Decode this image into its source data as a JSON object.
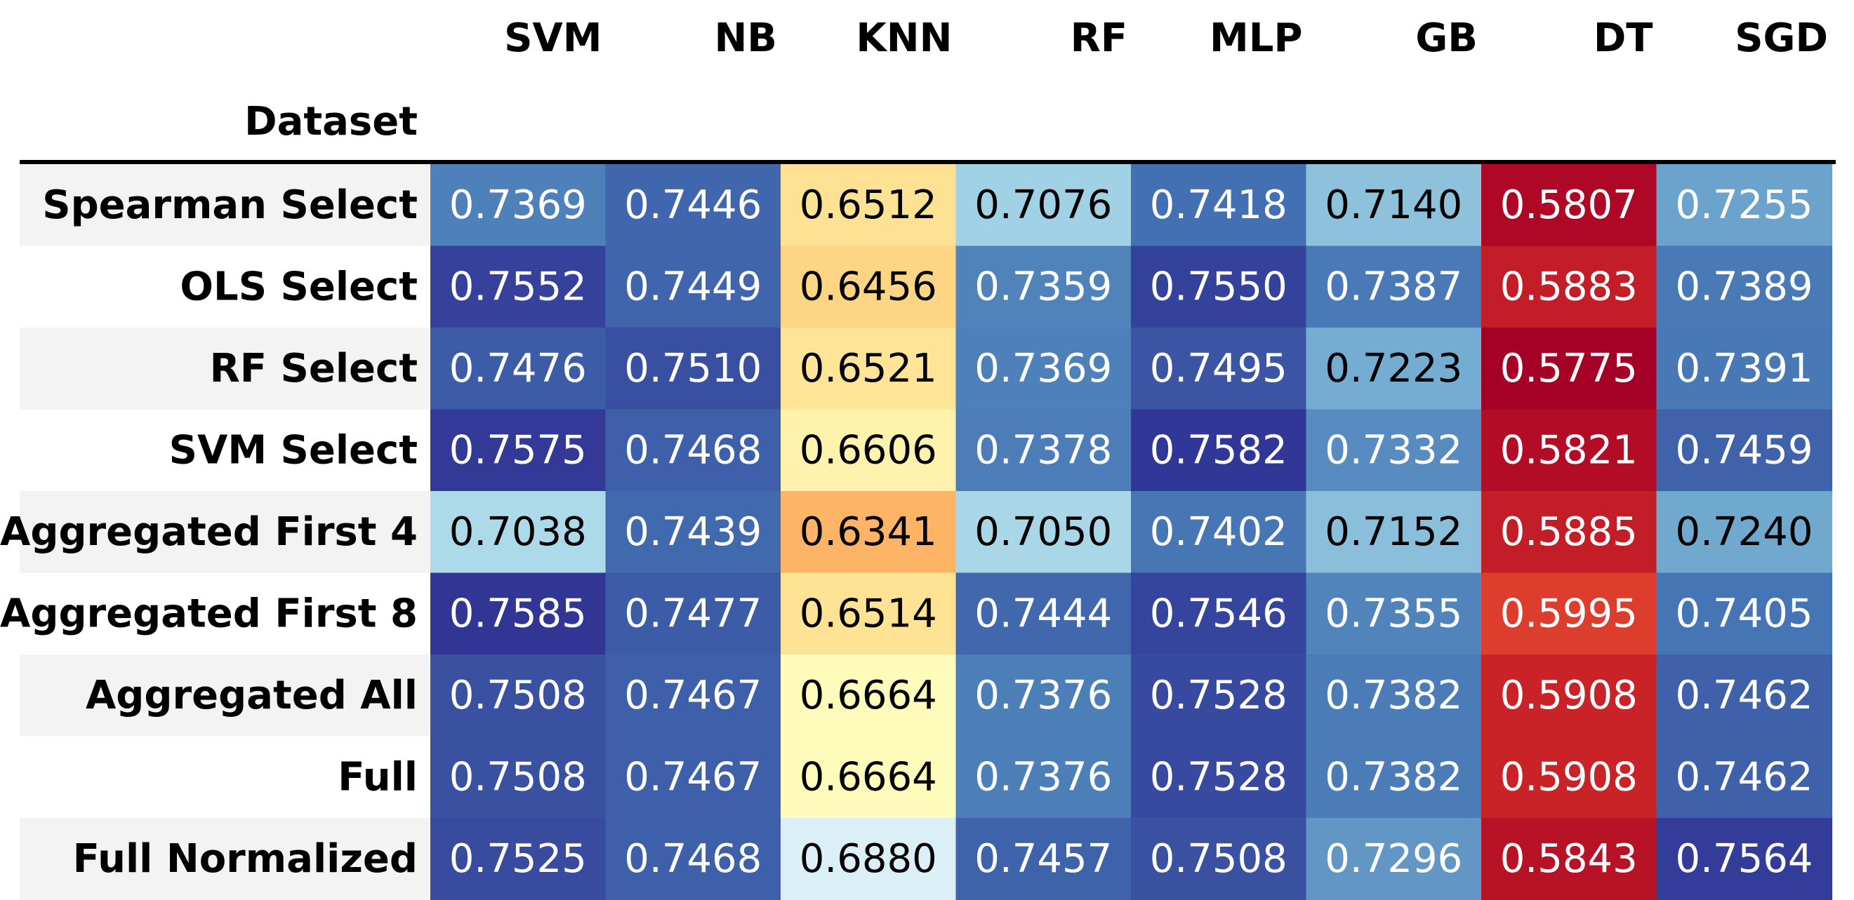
{
  "chart_data": {
    "type": "heatmap",
    "index_label": "Dataset",
    "columns": [
      "SVM",
      "NB",
      "KNN",
      "RF",
      "MLP",
      "GB",
      "DT",
      "SGD"
    ],
    "rows": [
      "Spearman Select",
      "OLS Select",
      "RF Select",
      "SVM Select",
      "Aggregated First 4",
      "Aggregated First 8",
      "Aggregated All",
      "Full",
      "Full Normalized"
    ],
    "values": [
      [
        0.7369,
        0.7446,
        0.6512,
        0.7076,
        0.7418,
        0.714,
        0.5807,
        0.7255
      ],
      [
        0.7552,
        0.7449,
        0.6456,
        0.7359,
        0.755,
        0.7387,
        0.5883,
        0.7389
      ],
      [
        0.7476,
        0.751,
        0.6521,
        0.7369,
        0.7495,
        0.7223,
        0.5775,
        0.7391
      ],
      [
        0.7575,
        0.7468,
        0.6606,
        0.7378,
        0.7582,
        0.7332,
        0.5821,
        0.7459
      ],
      [
        0.7038,
        0.7439,
        0.6341,
        0.705,
        0.7402,
        0.7152,
        0.5885,
        0.724
      ],
      [
        0.7585,
        0.7477,
        0.6514,
        0.7444,
        0.7546,
        0.7355,
        0.5995,
        0.7405
      ],
      [
        0.7508,
        0.7467,
        0.6664,
        0.7376,
        0.7528,
        0.7382,
        0.5908,
        0.7462
      ],
      [
        0.7508,
        0.7467,
        0.6664,
        0.7376,
        0.7528,
        0.7382,
        0.5908,
        0.7462
      ],
      [
        0.7525,
        0.7468,
        0.688,
        0.7457,
        0.7508,
        0.7296,
        0.5843,
        0.7564
      ]
    ],
    "display_values": [
      [
        "0.7369",
        "0.7446",
        "0.6512",
        "0.7076",
        "0.7418",
        "0.7140",
        "0.5807",
        "0.7255"
      ],
      [
        "0.7552",
        "0.7449",
        "0.6456",
        "0.7359",
        "0.7550",
        "0.7387",
        "0.5883",
        "0.7389"
      ],
      [
        "0.7476",
        "0.7510",
        "0.6521",
        "0.7369",
        "0.7495",
        "0.7223",
        "0.5775",
        "0.7391"
      ],
      [
        "0.7575",
        "0.7468",
        "0.6606",
        "0.7378",
        "0.7582",
        "0.7332",
        "0.5821",
        "0.7459"
      ],
      [
        "0.7038",
        "0.7439",
        "0.6341",
        "0.7050",
        "0.7402",
        "0.7152",
        "0.5885",
        "0.7240"
      ],
      [
        "0.7585",
        "0.7477",
        "0.6514",
        "0.7444",
        "0.7546",
        "0.7355",
        "0.5995",
        "0.7405"
      ],
      [
        "0.7508",
        "0.7467",
        "0.6664",
        "0.7376",
        "0.7528",
        "0.7382",
        "0.5908",
        "0.7462"
      ],
      [
        "0.7508",
        "0.7467",
        "0.6664",
        "0.7376",
        "0.7528",
        "0.7382",
        "0.5908",
        "0.7462"
      ],
      [
        "0.7525",
        "0.7468",
        "0.6880",
        "0.7457",
        "0.7508",
        "0.7296",
        "0.5843",
        "0.7564"
      ]
    ],
    "colormap": "RdYlBu",
    "colormap_stops": [
      "#a50026",
      "#d73027",
      "#f46d43",
      "#fdae61",
      "#fee090",
      "#ffffbf",
      "#e0f3f8",
      "#abd9e9",
      "#74add1",
      "#4575b4",
      "#313695"
    ],
    "value_range": [
      0.5775,
      0.7585
    ],
    "text_color_light": "#ffffff",
    "text_color_dark": "#000000",
    "row_band_color": "#f3f3f3",
    "header_rule_color": "#000000"
  }
}
